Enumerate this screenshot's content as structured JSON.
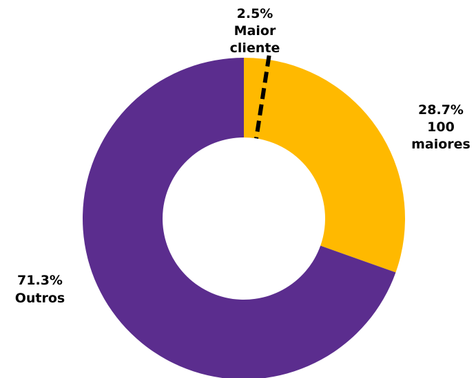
{
  "chart_data": {
    "type": "pie",
    "variant": "donut",
    "slices": [
      {
        "label_pct": "2.5%",
        "label_lines": [
          "Maior",
          "cliente"
        ],
        "value": 2.5,
        "color": "#FFB900",
        "note": "subset of 100 maiores"
      },
      {
        "label_pct": "28.7%",
        "label_lines": [
          "100",
          "maiores"
        ],
        "value": 28.7,
        "color": "#FFB900"
      },
      {
        "label_pct": "71.3%",
        "label_lines": [
          "Outros"
        ],
        "value": 71.3,
        "color": "#5B2D8E"
      }
    ],
    "divider": {
      "style": "dashed",
      "color": "#000000",
      "after_value": 2.5
    },
    "legend": "none"
  }
}
